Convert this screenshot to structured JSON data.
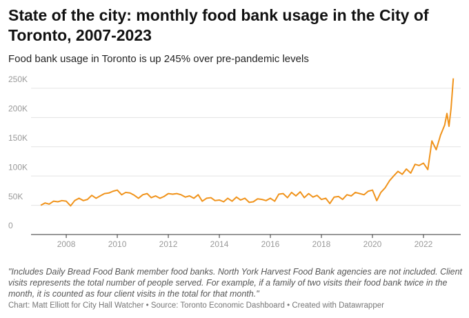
{
  "chart_data": {
    "type": "line",
    "title": "State of the city: monthly food bank usage in the City of Toronto, 2007-2023",
    "subtitle": "Food bank usage in Toronto is up 245% over pre-pandemic levels",
    "note": "\"Includes Daily Bread Food Bank member food banks. North York Harvest Food Bank agencies are not included. Client visits represents the total number of people served. For example, if a family of two visits their food bank twice in the month, it is counted as four client visits in the total for that month.\"",
    "source": "Chart: Matt Elliott for City Hall Watcher • Source: Toronto Economic Dashboard • Created with Datawrapper",
    "color": "#f0931b",
    "grid": true,
    "xlim": [
      2006.62,
      2023.46
    ],
    "xticks": [
      2008,
      2010,
      2012,
      2014,
      2016,
      2018,
      2020,
      2022
    ],
    "ylim": [
      0,
      270000
    ],
    "yticks": [
      0,
      {
        "value": 50000,
        "label": "50K"
      },
      {
        "value": 100000,
        "label": "100K"
      },
      {
        "value": 150000,
        "label": "150K"
      },
      {
        "value": 200000,
        "label": "200K"
      },
      {
        "value": 250000,
        "label": "250K"
      }
    ],
    "x": [
      2007,
      2007.17,
      2007.33,
      2007.5,
      2007.67,
      2007.83,
      2008,
      2008.17,
      2008.33,
      2008.5,
      2008.67,
      2008.83,
      2009,
      2009.17,
      2009.33,
      2009.5,
      2009.67,
      2009.83,
      2010,
      2010.17,
      2010.33,
      2010.5,
      2010.67,
      2010.83,
      2011,
      2011.17,
      2011.33,
      2011.5,
      2011.67,
      2011.83,
      2012,
      2012.17,
      2012.33,
      2012.5,
      2012.67,
      2012.83,
      2013,
      2013.17,
      2013.33,
      2013.5,
      2013.67,
      2013.83,
      2014,
      2014.17,
      2014.33,
      2014.5,
      2014.67,
      2014.83,
      2015,
      2015.17,
      2015.33,
      2015.5,
      2015.67,
      2015.83,
      2016,
      2016.17,
      2016.33,
      2016.5,
      2016.67,
      2016.83,
      2017,
      2017.17,
      2017.33,
      2017.5,
      2017.67,
      2017.83,
      2018,
      2018.17,
      2018.33,
      2018.5,
      2018.67,
      2018.83,
      2019,
      2019.17,
      2019.33,
      2019.5,
      2019.67,
      2019.83,
      2020,
      2020.17,
      2020.33,
      2020.5,
      2020.67,
      2020.83,
      2021,
      2021.17,
      2021.33,
      2021.5,
      2021.67,
      2021.83,
      2022,
      2022.17,
      2022.33,
      2022.5,
      2022.67,
      2022.83,
      2022.92,
      2023,
      2023.08,
      2023.17
    ],
    "values": [
      50000,
      54000,
      52000,
      57000,
      56000,
      58000,
      57000,
      49000,
      58000,
      62000,
      58000,
      60000,
      67000,
      62000,
      66000,
      70000,
      71000,
      74000,
      76000,
      68000,
      72000,
      71000,
      67000,
      62000,
      68000,
      70000,
      63000,
      66000,
      62000,
      65000,
      70000,
      69000,
      70000,
      68000,
      64000,
      66000,
      62000,
      68000,
      57000,
      62000,
      63000,
      58000,
      59000,
      56000,
      62000,
      57000,
      64000,
      59000,
      62000,
      55000,
      56000,
      61000,
      60000,
      58000,
      62000,
      57000,
      69000,
      70000,
      63000,
      72000,
      66000,
      73000,
      63000,
      70000,
      64000,
      67000,
      60000,
      62000,
      53000,
      64000,
      65000,
      60000,
      68000,
      66000,
      72000,
      70000,
      68000,
      74000,
      76000,
      58000,
      72000,
      80000,
      92000,
      100000,
      108000,
      103000,
      112000,
      105000,
      120000,
      118000,
      122000,
      111000,
      160000,
      145000,
      170000,
      187000,
      207000,
      185000,
      215000,
      267000
    ]
  }
}
